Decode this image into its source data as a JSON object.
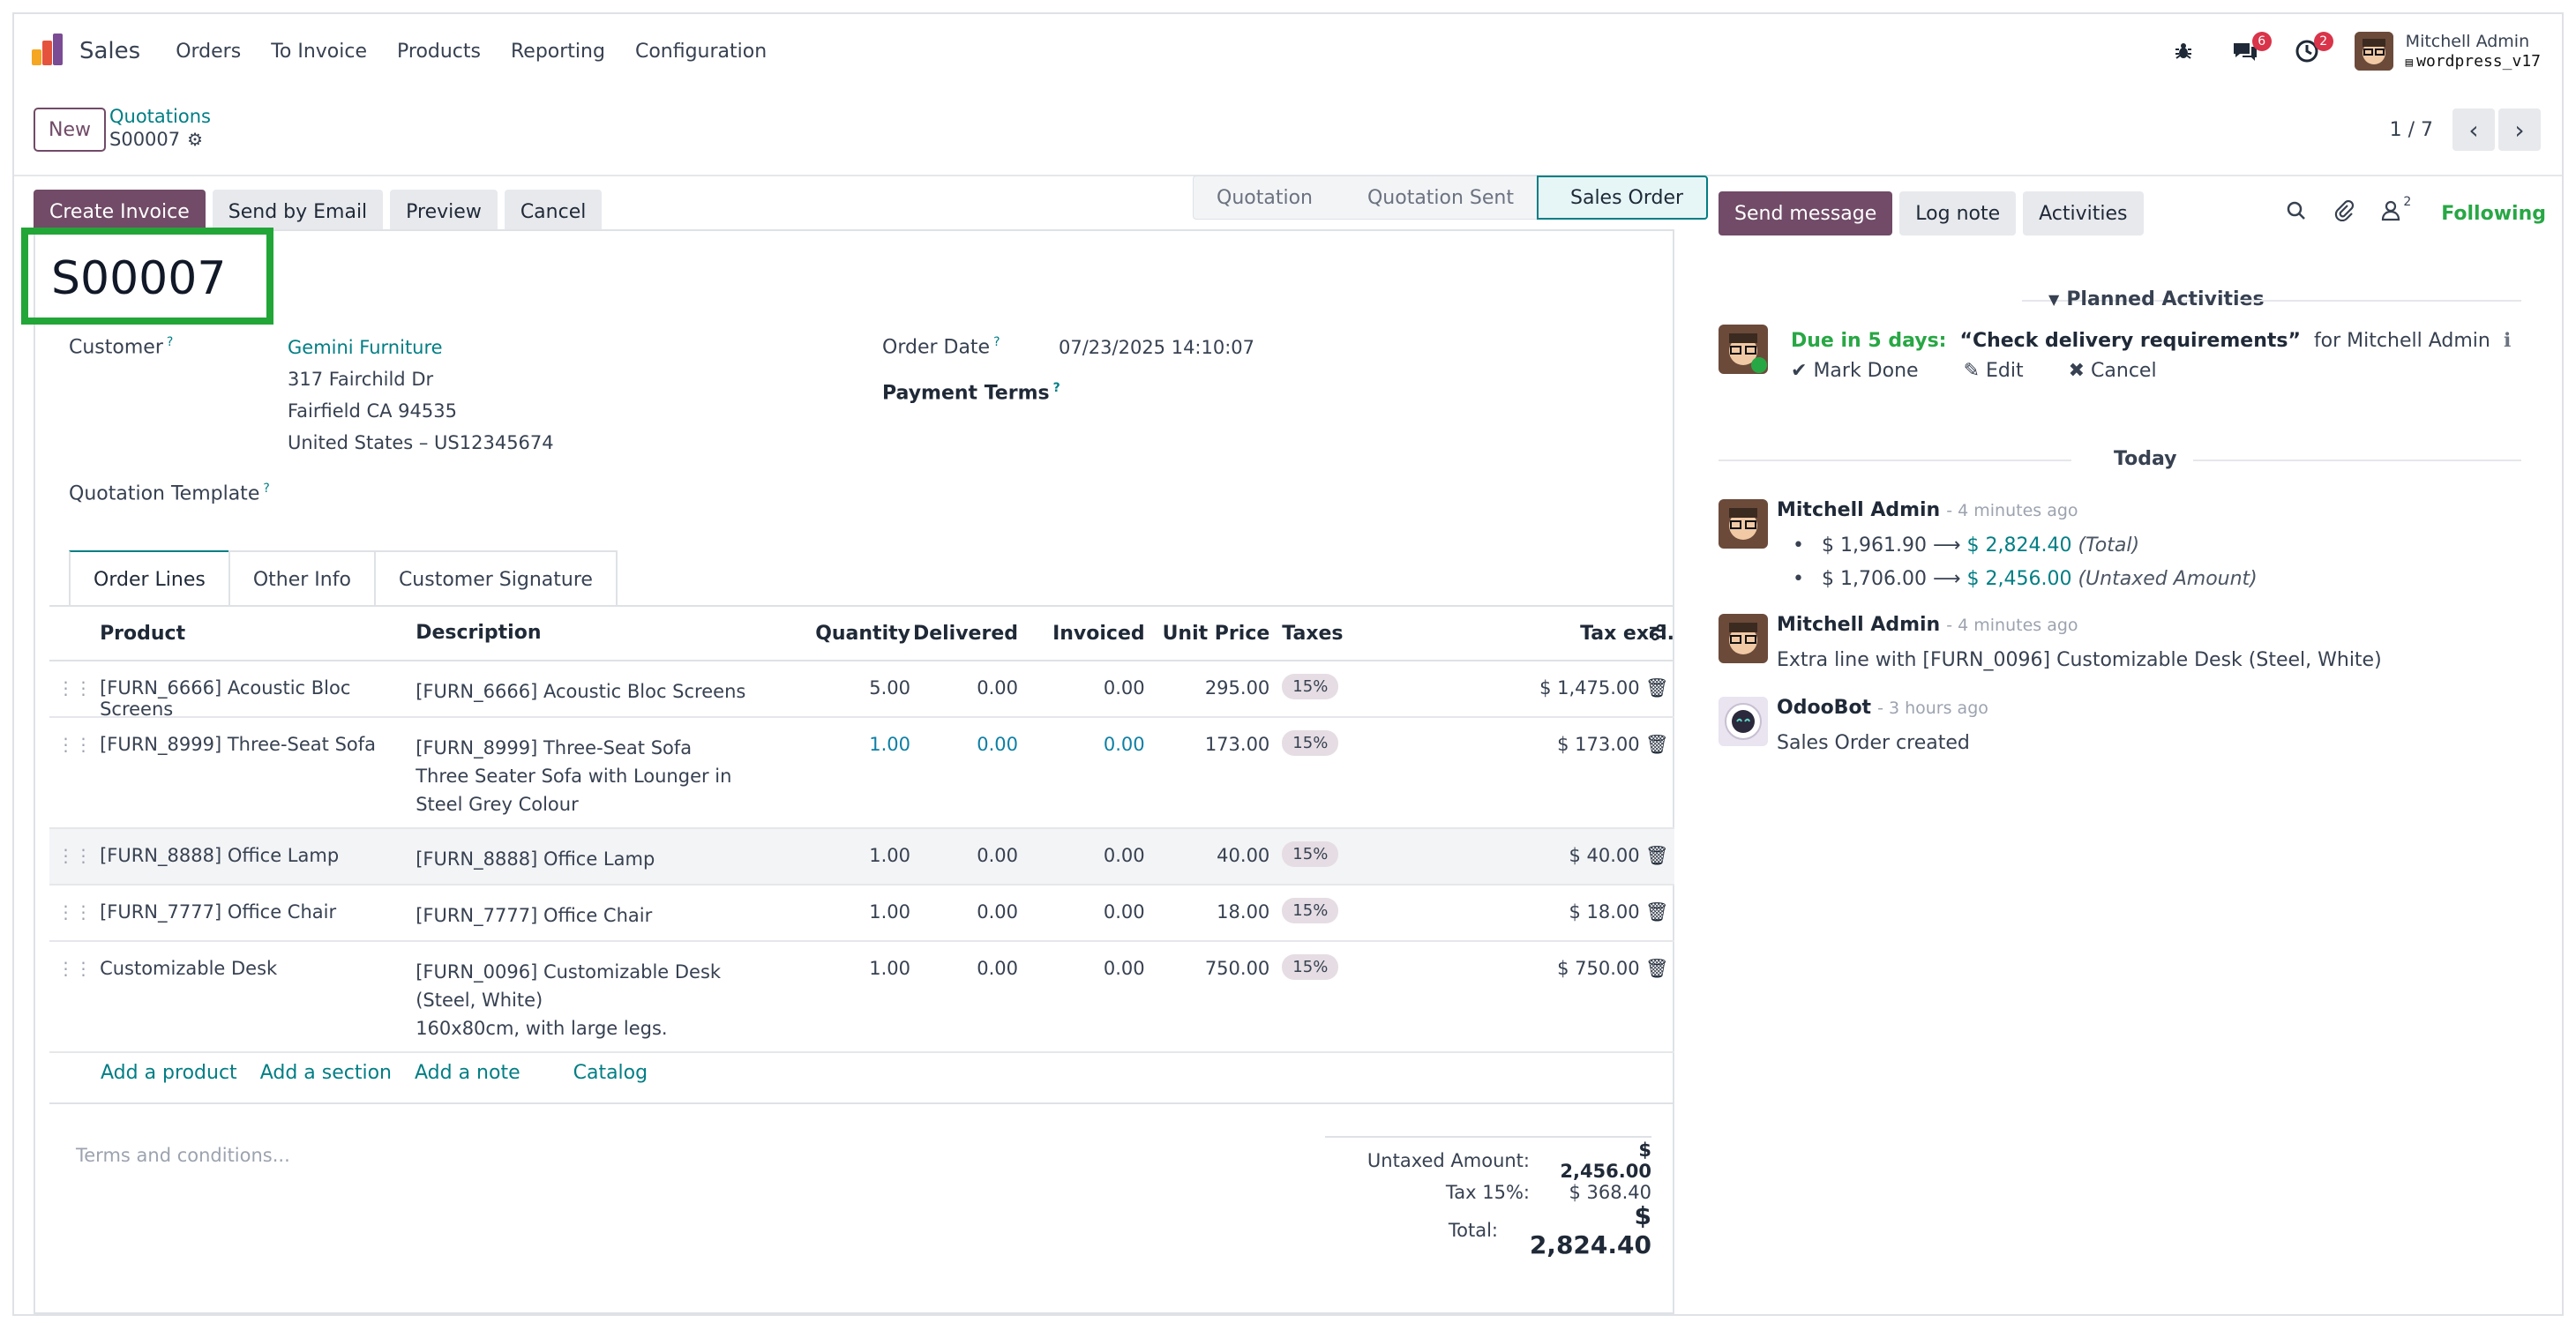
{
  "nav": {
    "app_name": "Sales",
    "menu": [
      "Orders",
      "To Invoice",
      "Products",
      "Reporting",
      "Configuration"
    ],
    "messages_badge": "6",
    "activities_badge": "2",
    "user_name": "Mitchell Admin",
    "database": "wordpress_v17"
  },
  "control_panel": {
    "new_label": "New",
    "breadcrumb_parent": "Quotations",
    "breadcrumb_current": "S00007",
    "pager": "1 / 7",
    "prev": "‹",
    "next": "›"
  },
  "actions": {
    "create_invoice": "Create Invoice",
    "send_by_email": "Send by Email",
    "preview": "Preview",
    "cancel": "Cancel"
  },
  "status": {
    "stages": [
      "Quotation",
      "Quotation Sent",
      "Sales Order"
    ],
    "active": "Sales Order"
  },
  "form": {
    "name": "S00007",
    "customer_label": "Customer",
    "customer": "Gemini Furniture",
    "address_line1": "317 Fairchild Dr",
    "address_line2": "Fairfield CA 94535",
    "address_line3": "United States – US12345674",
    "order_date_label": "Order Date",
    "order_date": "07/23/2025 14:10:07",
    "payment_terms_label": "Payment Terms",
    "quotation_template_label": "Quotation Template",
    "help_mark": "?"
  },
  "tabs": [
    "Order Lines",
    "Other Info",
    "Customer Signature"
  ],
  "order_lines": {
    "headers": {
      "product": "Product",
      "description": "Description",
      "quantity": "Quantity",
      "delivered": "Delivered",
      "invoiced": "Invoiced",
      "unit_price": "Unit Price",
      "taxes": "Taxes",
      "subtotal": "Tax excl."
    },
    "rows": [
      {
        "product": "[FURN_6666] Acoustic Bloc Screens",
        "desc1": "[FURN_6666] Acoustic Bloc Screens",
        "desc2": "",
        "desc3": "",
        "qty": "5.00",
        "delivered": "0.00",
        "invoiced": "0.00",
        "price": "295.00",
        "tax": "15%",
        "subtotal": "$ 1,475.00"
      },
      {
        "product": "[FURN_8999] Three-Seat Sofa",
        "desc1": "[FURN_8999] Three-Seat Sofa",
        "desc2": "Three Seater Sofa with Lounger in",
        "desc3": "Steel Grey Colour",
        "qty": "1.00",
        "delivered": "0.00",
        "invoiced": "0.00",
        "price": "173.00",
        "tax": "15%",
        "subtotal": "$ 173.00"
      },
      {
        "product": "[FURN_8888] Office Lamp",
        "desc1": "[FURN_8888] Office Lamp",
        "desc2": "",
        "desc3": "",
        "qty": "1.00",
        "delivered": "0.00",
        "invoiced": "0.00",
        "price": "40.00",
        "tax": "15%",
        "subtotal": "$ 40.00"
      },
      {
        "product": "[FURN_7777] Office Chair",
        "desc1": "[FURN_7777] Office Chair",
        "desc2": "",
        "desc3": "",
        "qty": "1.00",
        "delivered": "0.00",
        "invoiced": "0.00",
        "price": "18.00",
        "tax": "15%",
        "subtotal": "$ 18.00"
      },
      {
        "product": "Customizable Desk",
        "desc1": "[FURN_0096] Customizable Desk",
        "desc2": "(Steel, White)",
        "desc3": "160x80cm, with large legs.",
        "qty": "1.00",
        "delivered": "0.00",
        "invoiced": "0.00",
        "price": "750.00",
        "tax": "15%",
        "subtotal": "$ 750.00"
      }
    ],
    "add_product": "Add a product",
    "add_section": "Add a section",
    "add_note": "Add a note",
    "catalog": "Catalog"
  },
  "terms_placeholder": "Terms and conditions...",
  "totals": {
    "untaxed_label": "Untaxed Amount:",
    "untaxed": "$ 2,456.00",
    "tax_label": "Tax 15%:",
    "tax": "$ 368.40",
    "total_label": "Total:",
    "total": "$ 2,824.40"
  },
  "chatter": {
    "send_message": "Send message",
    "log_note": "Log note",
    "activities": "Activities",
    "followers_count": "2",
    "following": "Following",
    "planned_title": "Planned Activities",
    "activity": {
      "due": "Due in 5 days:",
      "summary": "“Check delivery requirements”",
      "for": "for Mitchell Admin",
      "mark_done": "Mark Done",
      "edit": "Edit",
      "cancel": "Cancel"
    },
    "today_label": "Today",
    "messages": [
      {
        "author": "Mitchell Admin",
        "date": "- 4 minutes ago",
        "old1": "$ 1,961.90",
        "new1": "$ 2,824.40",
        "field1": "(Total)",
        "old2": "$ 1,706.00",
        "new2": "$ 2,456.00",
        "field2": "(Untaxed Amount)"
      },
      {
        "author": "Mitchell Admin",
        "date": "- 4 minutes ago",
        "body": "Extra line with [FURN_0096] Customizable Desk (Steel, White)"
      },
      {
        "author": "OdooBot",
        "date": "- 3 hours ago",
        "body": "Sales Order created"
      }
    ]
  }
}
